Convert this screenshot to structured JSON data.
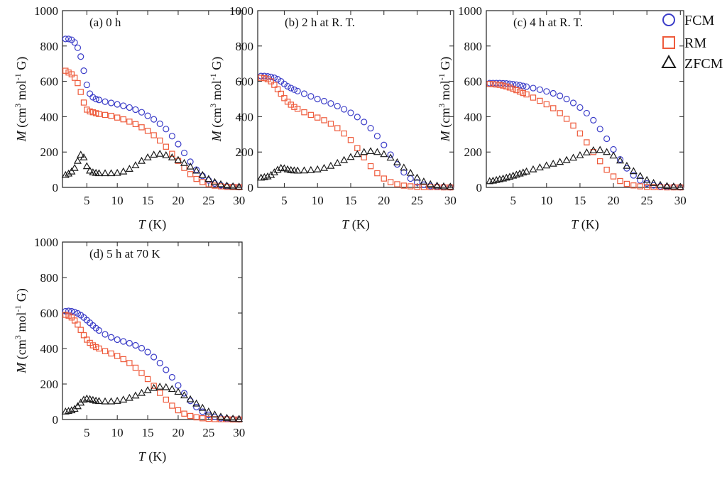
{
  "chart_data": [
    {
      "type": "scatter",
      "panel": "a",
      "title": "(a) 0 h",
      "xlabel": "T (K)",
      "xlabel_var": "T",
      "xlabel_unit": " (K)",
      "ylabel": "M (cm3 mol-1 G)",
      "xlim": [
        1,
        30.5
      ],
      "ylim": [
        0,
        1000
      ],
      "xticks": [
        5,
        10,
        15,
        20,
        25,
        30
      ],
      "yticks": [
        0,
        200,
        400,
        600,
        800,
        1000
      ],
      "series": [
        {
          "name": "FCM",
          "x": [
            1.5,
            2,
            2.5,
            3,
            3.5,
            4,
            4.5,
            5,
            5.5,
            6,
            6.5,
            7,
            8,
            9,
            10,
            11,
            12,
            13,
            14,
            15,
            16,
            17,
            18,
            19,
            20,
            21,
            22,
            23,
            24,
            25,
            26,
            27,
            28,
            29,
            30
          ],
          "y": [
            840,
            840,
            835,
            820,
            790,
            740,
            660,
            580,
            530,
            510,
            500,
            495,
            485,
            478,
            470,
            462,
            452,
            440,
            425,
            405,
            385,
            360,
            330,
            290,
            245,
            195,
            145,
            100,
            65,
            40,
            22,
            12,
            6,
            4,
            2
          ]
        },
        {
          "name": "RM",
          "x": [
            1.5,
            2,
            2.5,
            3,
            3.5,
            4,
            4.5,
            5,
            5.5,
            6,
            6.5,
            7,
            8,
            9,
            10,
            11,
            12,
            13,
            14,
            15,
            16,
            17,
            18,
            19,
            20,
            21,
            22,
            23,
            24,
            25,
            26,
            27,
            28,
            29,
            30
          ],
          "y": [
            660,
            650,
            640,
            620,
            590,
            540,
            480,
            440,
            430,
            425,
            420,
            415,
            410,
            405,
            395,
            385,
            372,
            358,
            340,
            320,
            295,
            265,
            230,
            190,
            150,
            110,
            75,
            48,
            30,
            18,
            10,
            6,
            3,
            2,
            1
          ]
        },
        {
          "name": "ZFCM",
          "x": [
            1.5,
            2,
            2.5,
            3,
            3.5,
            4,
            4.5,
            5,
            5.5,
            6,
            6.5,
            7,
            8,
            9,
            10,
            11,
            12,
            13,
            14,
            15,
            16,
            17,
            18,
            19,
            20,
            21,
            22,
            23,
            24,
            25,
            26,
            27,
            28,
            29,
            30
          ],
          "y": [
            70,
            78,
            90,
            110,
            150,
            185,
            170,
            120,
            95,
            85,
            82,
            80,
            80,
            80,
            82,
            90,
            105,
            125,
            150,
            170,
            185,
            190,
            182,
            170,
            155,
            138,
            118,
            95,
            70,
            48,
            30,
            18,
            10,
            6,
            4
          ]
        }
      ]
    },
    {
      "type": "scatter",
      "panel": "b",
      "title": "(b) 2 h at R. T.",
      "xlabel": "T (K)",
      "xlabel_var": "T",
      "xlabel_unit": " (K)",
      "ylabel": "M (cm3 mol-1 G)",
      "xlim": [
        1,
        30.5
      ],
      "ylim": [
        0,
        1000
      ],
      "xticks": [
        5,
        10,
        15,
        20,
        25,
        30
      ],
      "yticks": [
        0,
        200,
        400,
        600,
        800,
        1000
      ],
      "series": [
        {
          "name": "FCM",
          "x": [
            1.5,
            2,
            2.5,
            3,
            3.5,
            4,
            4.5,
            5,
            5.5,
            6,
            6.5,
            7,
            8,
            9,
            10,
            11,
            12,
            13,
            14,
            15,
            16,
            17,
            18,
            19,
            20,
            21,
            22,
            23,
            24,
            25,
            26,
            27,
            28,
            29,
            30
          ],
          "y": [
            630,
            630,
            628,
            625,
            620,
            612,
            600,
            585,
            572,
            562,
            553,
            545,
            530,
            515,
            500,
            488,
            475,
            460,
            442,
            422,
            398,
            370,
            335,
            290,
            240,
            185,
            130,
            85,
            50,
            28,
            15,
            8,
            4,
            2,
            1
          ]
        },
        {
          "name": "RM",
          "x": [
            1.5,
            2,
            2.5,
            3,
            3.5,
            4,
            4.5,
            5,
            5.5,
            6,
            6.5,
            7,
            8,
            9,
            10,
            11,
            12,
            13,
            14,
            15,
            16,
            17,
            18,
            19,
            20,
            21,
            22,
            23,
            24,
            25,
            26,
            27,
            28,
            29,
            30
          ],
          "y": [
            620,
            618,
            612,
            600,
            580,
            555,
            530,
            505,
            485,
            468,
            455,
            445,
            425,
            410,
            395,
            380,
            360,
            335,
            305,
            268,
            222,
            170,
            120,
            80,
            50,
            30,
            18,
            10,
            6,
            3,
            2,
            1,
            1,
            0,
            0
          ]
        },
        {
          "name": "ZFCM",
          "x": [
            1.5,
            2,
            2.5,
            3,
            3.5,
            4,
            4.5,
            5,
            5.5,
            6,
            6.5,
            7,
            8,
            9,
            10,
            11,
            12,
            13,
            14,
            15,
            16,
            17,
            18,
            19,
            20,
            21,
            22,
            23,
            24,
            25,
            26,
            27,
            28,
            29,
            30
          ],
          "y": [
            55,
            58,
            62,
            70,
            85,
            100,
            110,
            108,
            102,
            98,
            96,
            95,
            96,
            98,
            102,
            110,
            122,
            138,
            155,
            172,
            188,
            200,
            205,
            200,
            188,
            168,
            142,
            112,
            82,
            55,
            33,
            18,
            10,
            6,
            4
          ]
        }
      ]
    },
    {
      "type": "scatter",
      "panel": "c",
      "title": "(c) 4 h at R. T.",
      "xlabel": "T (K)",
      "xlabel_var": "T",
      "xlabel_unit": " (K)",
      "ylabel": "M (cm3 mol-1 G)",
      "xlim": [
        1,
        30.5
      ],
      "ylim": [
        0,
        1000
      ],
      "xticks": [
        5,
        10,
        15,
        20,
        25,
        30
      ],
      "yticks": [
        0,
        200,
        400,
        600,
        800,
        1000
      ],
      "series": [
        {
          "name": "FCM",
          "x": [
            1.5,
            2,
            2.5,
            3,
            3.5,
            4,
            4.5,
            5,
            5.5,
            6,
            6.5,
            7,
            8,
            9,
            10,
            11,
            12,
            13,
            14,
            15,
            16,
            17,
            18,
            19,
            20,
            21,
            22,
            23,
            24,
            25,
            26,
            27,
            28,
            29,
            30
          ],
          "y": [
            590,
            590,
            590,
            590,
            589,
            588,
            586,
            584,
            581,
            578,
            574,
            570,
            562,
            553,
            543,
            532,
            518,
            500,
            478,
            452,
            420,
            380,
            330,
            275,
            215,
            158,
            108,
            68,
            40,
            22,
            12,
            6,
            3,
            2,
            1
          ]
        },
        {
          "name": "RM",
          "x": [
            1.5,
            2,
            2.5,
            3,
            3.5,
            4,
            4.5,
            5,
            5.5,
            6,
            6.5,
            7,
            8,
            9,
            10,
            11,
            12,
            13,
            14,
            15,
            16,
            17,
            18,
            19,
            20,
            21,
            22,
            23,
            24,
            25,
            26,
            27,
            28,
            29,
            30
          ],
          "y": [
            585,
            584,
            582,
            580,
            576,
            571,
            565,
            558,
            550,
            542,
            534,
            526,
            508,
            490,
            470,
            448,
            420,
            388,
            350,
            305,
            255,
            200,
            148,
            100,
            62,
            36,
            20,
            11,
            6,
            3,
            2,
            1,
            0,
            0,
            0
          ]
        },
        {
          "name": "ZFCM",
          "x": [
            1.5,
            2,
            2.5,
            3,
            3.5,
            4,
            4.5,
            5,
            5.5,
            6,
            6.5,
            7,
            8,
            9,
            10,
            11,
            12,
            13,
            14,
            15,
            16,
            17,
            18,
            19,
            20,
            21,
            22,
            23,
            24,
            25,
            26,
            27,
            28,
            29,
            30
          ],
          "y": [
            35,
            38,
            42,
            46,
            50,
            55,
            60,
            66,
            72,
            78,
            84,
            90,
            102,
            113,
            124,
            134,
            144,
            155,
            168,
            182,
            198,
            210,
            212,
            200,
            180,
            152,
            122,
            92,
            65,
            42,
            25,
            14,
            8,
            5,
            3
          ]
        }
      ]
    },
    {
      "type": "scatter",
      "panel": "d",
      "title": "(d) 5 h at 70 K",
      "xlabel": "T (K)",
      "xlabel_var": "T",
      "xlabel_unit": " (K)",
      "ylabel": "M (cm3 mol-1 G)",
      "xlim": [
        1,
        30.5
      ],
      "ylim": [
        0,
        1000
      ],
      "xticks": [
        5,
        10,
        15,
        20,
        25,
        30
      ],
      "yticks": [
        0,
        200,
        400,
        600,
        800,
        1000
      ],
      "series": [
        {
          "name": "FCM",
          "x": [
            1.5,
            2,
            2.5,
            3,
            3.5,
            4,
            4.5,
            5,
            5.5,
            6,
            6.5,
            7,
            8,
            9,
            10,
            11,
            12,
            13,
            14,
            15,
            16,
            17,
            18,
            19,
            20,
            21,
            22,
            23,
            24,
            25,
            26,
            27,
            28,
            29,
            30
          ],
          "y": [
            610,
            612,
            610,
            605,
            598,
            588,
            575,
            560,
            545,
            530,
            515,
            502,
            480,
            463,
            450,
            440,
            430,
            418,
            402,
            380,
            352,
            318,
            280,
            238,
            192,
            148,
            105,
            70,
            44,
            26,
            15,
            8,
            4,
            2,
            1
          ]
        },
        {
          "name": "RM",
          "x": [
            1.5,
            2,
            2.5,
            3,
            3.5,
            4,
            4.5,
            5,
            5.5,
            6,
            6.5,
            7,
            8,
            9,
            10,
            11,
            12,
            13,
            14,
            15,
            16,
            17,
            18,
            19,
            20,
            21,
            22,
            23,
            24,
            25,
            26,
            27,
            28,
            29,
            30
          ],
          "y": [
            590,
            585,
            575,
            558,
            535,
            505,
            475,
            450,
            432,
            418,
            408,
            400,
            385,
            372,
            358,
            340,
            318,
            292,
            262,
            228,
            190,
            150,
            112,
            78,
            52,
            33,
            20,
            12,
            7,
            4,
            2,
            1,
            1,
            0,
            0
          ]
        },
        {
          "name": "ZFCM",
          "x": [
            1.5,
            2,
            2.5,
            3,
            3.5,
            4,
            4.5,
            5,
            5.5,
            6,
            6.5,
            7,
            8,
            9,
            10,
            11,
            12,
            13,
            14,
            15,
            16,
            17,
            18,
            19,
            20,
            21,
            22,
            23,
            24,
            25,
            26,
            27,
            28,
            29,
            30
          ],
          "y": [
            45,
            48,
            52,
            60,
            75,
            95,
            112,
            118,
            115,
            110,
            106,
            104,
            102,
            102,
            105,
            112,
            122,
            135,
            150,
            165,
            178,
            185,
            182,
            172,
            156,
            136,
            114,
            90,
            66,
            45,
            28,
            16,
            9,
            5,
            3
          ]
        }
      ]
    }
  ],
  "legend": {
    "position": "top-right",
    "items": [
      {
        "name": "FCM",
        "marker": "circle",
        "color": "#3b3dc8"
      },
      {
        "name": "RM",
        "marker": "square",
        "color": "#ee5b3c"
      },
      {
        "name": "ZFCM",
        "marker": "triangle",
        "color": "#1a1a1a"
      }
    ]
  },
  "colors": {
    "FCM": "#3b3dc8",
    "RM": "#ee5b3c",
    "ZFCM": "#1a1a1a",
    "axis": "#222222"
  }
}
